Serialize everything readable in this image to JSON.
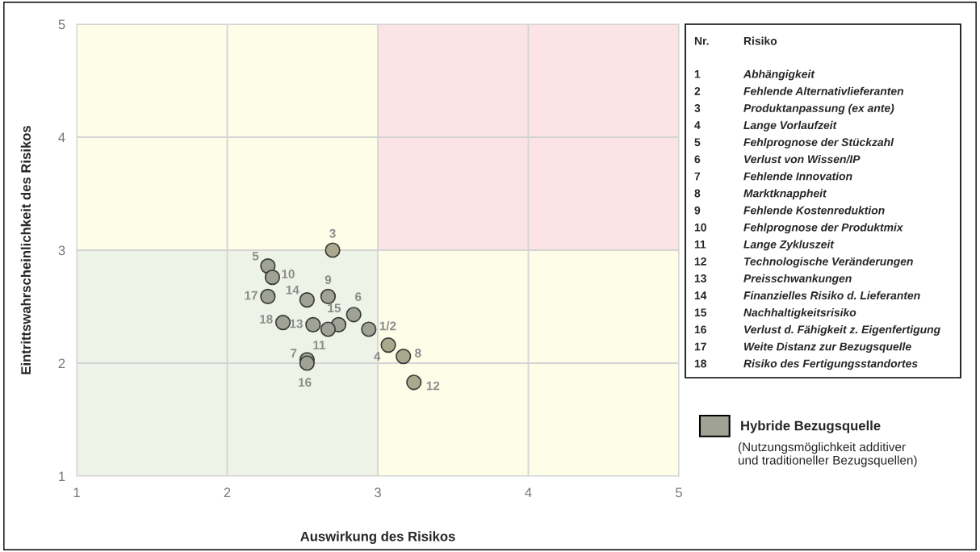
{
  "chart_data": {
    "type": "scatter",
    "xlabel": "Auswirkung des Risikos",
    "ylabel": "Eintrittswahrscheinlichkeit des Risikos",
    "xlim": [
      1,
      5
    ],
    "ylim": [
      1,
      5
    ],
    "xticks": [
      1,
      2,
      3,
      4,
      5
    ],
    "yticks": [
      1,
      2,
      3,
      4,
      5
    ],
    "grid": true,
    "marker": "circle",
    "legend": "right",
    "bands": [
      {
        "axis": "x",
        "from": 1,
        "to": 3,
        "color": "#eef3e7"
      },
      {
        "axis": "x",
        "from": 1,
        "to": 3,
        "color": "#fdfde8"
      },
      {
        "axis": "x",
        "from": 3,
        "to": 5,
        "color": "#fdfde8"
      },
      {
        "axis": "x",
        "from": 3,
        "to": 5,
        "color": "#fce3e5"
      }
    ],
    "series": [
      {
        "name": "Hybride Bezugsquelle",
        "color": "#9fa295",
        "x": [
          2.7,
          2.27,
          2.3,
          2.27,
          2.53,
          2.67,
          2.84,
          2.74,
          2.57,
          2.67,
          2.37,
          2.94,
          3.07,
          3.17,
          3.24,
          2.53,
          2.53
        ],
        "values": [
          3.0,
          2.86,
          2.76,
          2.59,
          2.56,
          2.59,
          2.43,
          2.34,
          2.34,
          2.3,
          2.36,
          2.3,
          2.16,
          2.06,
          1.83,
          2.03,
          2.0
        ],
        "colors": [
          "#aaa98d",
          "#9fa295",
          "#9fa295",
          "#9fa295",
          "#9fa295",
          "#9fa295",
          "#9fa295",
          "#9fa295",
          "#9fa295",
          "#9fa295",
          "#9fa295",
          "#9fa295",
          "#aaa98d",
          "#aaa98d",
          "#aaa98d",
          "#9fa295",
          "#9fa295"
        ]
      }
    ],
    "annotations": [
      {
        "text": "3",
        "x": 2.7,
        "y": 3.0
      },
      {
        "text": "5",
        "x": 2.27,
        "y": 2.86
      },
      {
        "text": "10",
        "x": 2.3,
        "y": 2.76
      },
      {
        "text": "17",
        "x": 2.27,
        "y": 2.59
      },
      {
        "text": "14",
        "x": 2.53,
        "y": 2.56
      },
      {
        "text": "9",
        "x": 2.67,
        "y": 2.59
      },
      {
        "text": "6",
        "x": 2.84,
        "y": 2.43
      },
      {
        "text": "15",
        "x": 2.74,
        "y": 2.34
      },
      {
        "text": "13",
        "x": 2.57,
        "y": 2.34
      },
      {
        "text": "11",
        "x": 2.67,
        "y": 2.3
      },
      {
        "text": "18",
        "x": 2.37,
        "y": 2.36
      },
      {
        "text": "1/2",
        "x": 2.94,
        "y": 2.3
      },
      {
        "text": "4",
        "x": 3.07,
        "y": 2.16
      },
      {
        "text": "8",
        "x": 3.17,
        "y": 2.06
      },
      {
        "text": "12",
        "x": 3.24,
        "y": 1.83
      },
      {
        "text": "7",
        "x": 2.53,
        "y": 2.03
      },
      {
        "text": "16",
        "x": 2.53,
        "y": 2.0
      },
      "Nr.",
      "Risiko",
      "1",
      "Abhängigkeit",
      "2",
      "Fehlende Alternativlieferanten",
      "3",
      "Produktanpassung (ex ante)",
      "4",
      "Lange Vorlaufzeit",
      "5",
      "Fehlprognose der Stückzahl",
      "6",
      "Verlust von Wissen/IP",
      "7",
      "Fehlende Innovation",
      "8",
      "Marktknappheit",
      "9",
      "Fehlende Kostenreduktion",
      "10",
      "Fehlprognose der Produktmix",
      "11",
      "Lange Zykluszeit",
      "12",
      "Technologische Veränderungen",
      "13",
      "Preisschwankungen",
      "14",
      "Finanzielles Risiko d. Lieferanten",
      "15",
      "Nachhaltigkeitsrisiko",
      "16",
      "Verlust d. Fähigkeit z. Eigenfertigung",
      "17",
      "Weite Distanz zur Bezugsquelle",
      "18",
      "Risiko des Fertigungsstandortes",
      "(Nutzungsmöglichkeit additiver\nund traditioneller Bezugsquellen)"
    ]
  }
}
